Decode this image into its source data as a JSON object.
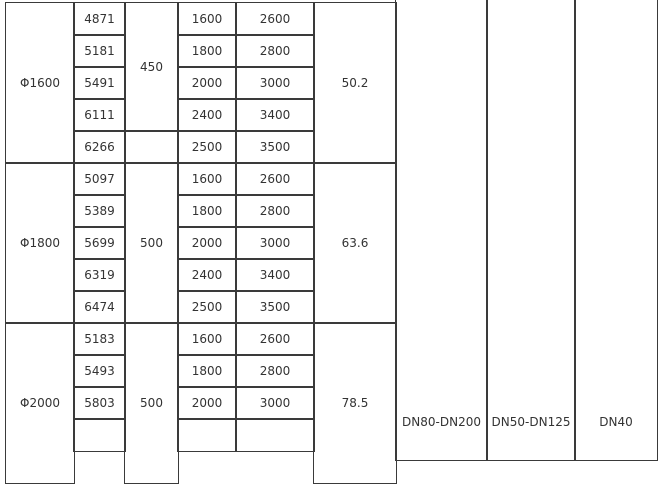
{
  "groups": [
    {
      "diameter": "Φ1600",
      "width": "450",
      "area": "50.2",
      "rows": [
        [
          "4871",
          "1600",
          "2600"
        ],
        [
          "5181",
          "1800",
          "2800"
        ],
        [
          "5491",
          "2000",
          "3000"
        ],
        [
          "6111",
          "2400",
          "3400"
        ],
        [
          "6266",
          "2500",
          "3500"
        ]
      ]
    },
    {
      "diameter": "Φ1800",
      "width": "500",
      "area": "63.6",
      "rows": [
        [
          "5097",
          "1600",
          "2600"
        ],
        [
          "5389",
          "1800",
          "2800"
        ],
        [
          "5699",
          "2000",
          "3000"
        ],
        [
          "6319",
          "2400",
          "3400"
        ],
        [
          "6474",
          "2500",
          "3500"
        ]
      ]
    },
    {
      "diameter": "Φ2000",
      "width": "500",
      "area": "78.5",
      "rows": [
        [
          "5183",
          "1600",
          "2600"
        ],
        [
          "5493",
          "1800",
          "2800"
        ],
        [
          "5803",
          "2000",
          "3000"
        ],
        [
          "",
          "",
          ""
        ]
      ]
    }
  ],
  "pipe_sizes": [
    "DN80-DN200",
    "DN50-DN125",
    "DN40"
  ]
}
